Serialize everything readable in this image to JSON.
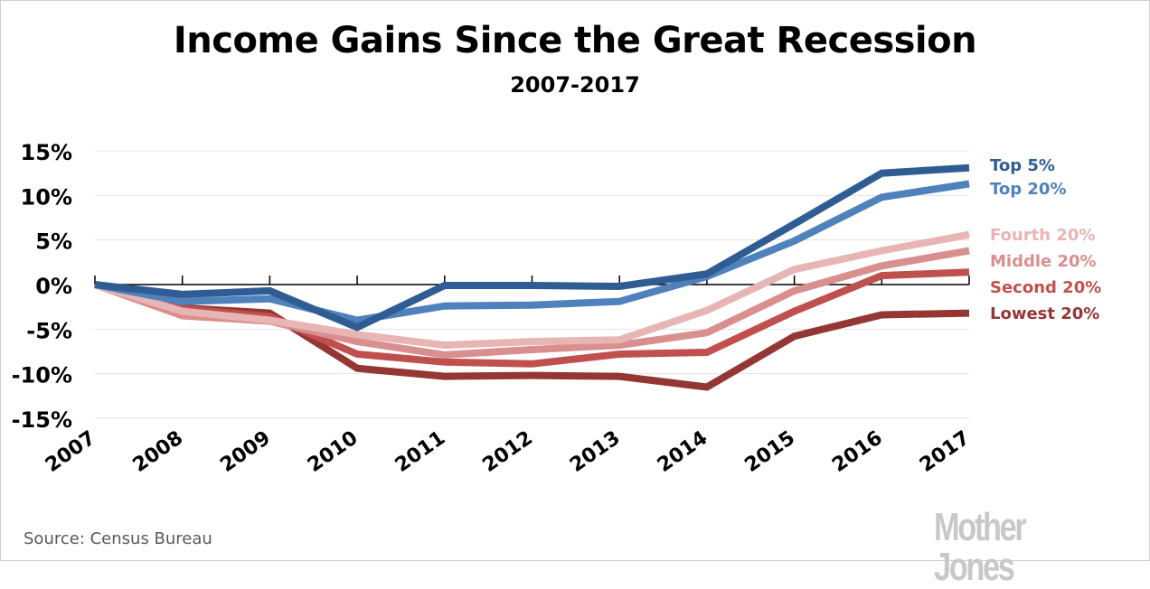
{
  "title": "Income Gains Since the Great Recession",
  "subtitle": "2007-2017",
  "source": "Source: Census Bureau",
  "logo": "Mother Jones",
  "chart_data": {
    "type": "line",
    "title": "Income Gains Since the Great Recession",
    "subtitle": "2007-2017",
    "xlabel": "",
    "ylabel": "",
    "x": [
      "2007",
      "2008",
      "2009",
      "2010",
      "2011",
      "2012",
      "2013",
      "2014",
      "2015",
      "2016",
      "2017"
    ],
    "ylim": [
      -15,
      15
    ],
    "yticks": [
      15,
      10,
      5,
      0,
      -5,
      -10,
      -15
    ],
    "ytick_labels": [
      "15%",
      "10%",
      "5%",
      "0%",
      "-5%",
      "-10%",
      "-15%"
    ],
    "grid": true,
    "legend_placement": "right",
    "series": [
      {
        "name": "Top 5%",
        "color": "#2f5d93",
        "values": [
          0,
          -1.1,
          -0.7,
          -4.8,
          -0.1,
          -0.1,
          -0.2,
          1.2,
          6.8,
          12.5,
          13.1
        ]
      },
      {
        "name": "Top 20%",
        "color": "#4f81bd",
        "values": [
          0,
          -1.9,
          -1.6,
          -4.0,
          -2.4,
          -2.3,
          -1.9,
          0.9,
          4.9,
          9.8,
          11.3
        ]
      },
      {
        "name": "Fourth 20%",
        "color": "#e8b5b5",
        "values": [
          0,
          -3.0,
          -4.0,
          -5.6,
          -6.8,
          -6.4,
          -6.2,
          -2.9,
          1.7,
          3.8,
          5.6
        ]
      },
      {
        "name": "Middle 20%",
        "color": "#d98f8e",
        "values": [
          0,
          -3.5,
          -4.1,
          -6.4,
          -7.9,
          -7.3,
          -6.8,
          -5.4,
          -0.7,
          2.1,
          3.8
        ]
      },
      {
        "name": "Second 20%",
        "color": "#c0504d",
        "values": [
          0,
          -2.7,
          -3.6,
          -7.8,
          -8.7,
          -8.9,
          -7.8,
          -7.6,
          -3.0,
          1.0,
          1.4
        ]
      },
      {
        "name": "Lowest 20%",
        "color": "#943634",
        "values": [
          0,
          -2.6,
          -3.2,
          -9.4,
          -10.3,
          -10.2,
          -10.3,
          -11.5,
          -5.8,
          -3.4,
          -3.2
        ]
      }
    ]
  }
}
